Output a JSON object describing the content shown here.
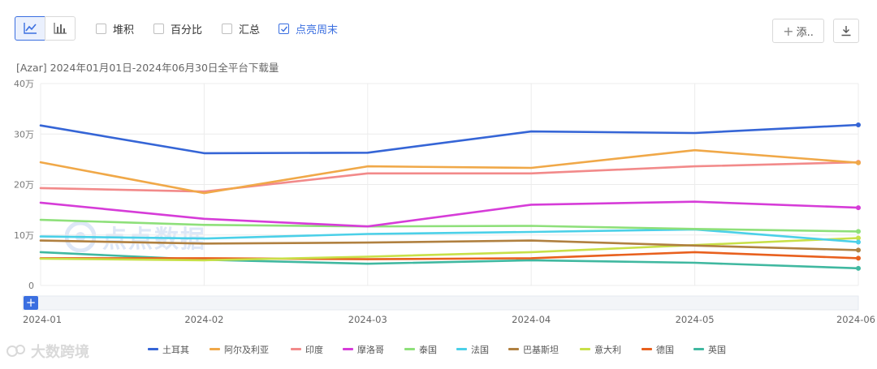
{
  "toolbar": {
    "line_icon": "line-chart-icon",
    "bar_icon": "bar-chart-icon",
    "options": [
      {
        "label": "堆积",
        "checked": false
      },
      {
        "label": "百分比",
        "checked": false
      },
      {
        "label": "汇总",
        "checked": false
      },
      {
        "label": "点亮周末",
        "checked": true
      }
    ],
    "add_label": "添..",
    "download_icon": "download-icon"
  },
  "watermark": {
    "text": "点点数据",
    "footer": "大数跨境"
  },
  "colors": {
    "accent": "#3b6fe0"
  },
  "chart_data": {
    "type": "line",
    "title": "[Azar]  2024年01月01日-2024年06月30日全平台下载量",
    "xlabel": "",
    "ylabel": "",
    "x": [
      "2024-01",
      "2024-02",
      "2024-03",
      "2024-04",
      "2024-05",
      "2024-06"
    ],
    "yticks": [
      "0",
      "10万",
      "20万",
      "30万",
      "40万"
    ],
    "ylim": [
      0,
      400000
    ],
    "grid": true,
    "legend_position": "bottom",
    "series": [
      {
        "name": "土耳其",
        "color": "#3565d6",
        "values": [
          317000,
          262000,
          263000,
          305000,
          302000,
          318000
        ]
      },
      {
        "name": "阿尔及利亚",
        "color": "#f0a848",
        "values": [
          244000,
          183000,
          236000,
          233000,
          268000,
          243000
        ]
      },
      {
        "name": "印度",
        "color": "#f28a8a",
        "values": [
          193000,
          186000,
          222000,
          222000,
          236000,
          244000
        ]
      },
      {
        "name": "摩洛哥",
        "color": "#d63cd8",
        "values": [
          164000,
          132000,
          117000,
          160000,
          166000,
          154000
        ]
      },
      {
        "name": "泰国",
        "color": "#8ee07a",
        "values": [
          130000,
          120000,
          117000,
          118000,
          112000,
          107000
        ]
      },
      {
        "name": "法国",
        "color": "#4bd0e8",
        "values": [
          97000,
          93000,
          102000,
          106000,
          111000,
          86000
        ]
      },
      {
        "name": "巴基斯坦",
        "color": "#b08040",
        "values": [
          89000,
          83000,
          85000,
          89000,
          79000,
          70000
        ]
      },
      {
        "name": "意大利",
        "color": "#c8e048",
        "values": [
          53000,
          50000,
          57000,
          66000,
          80000,
          94000
        ]
      },
      {
        "name": "德国",
        "color": "#e8601e",
        "values": [
          54000,
          54000,
          52000,
          54000,
          66000,
          54000
        ]
      },
      {
        "name": "英国",
        "color": "#40b8a0",
        "values": [
          66000,
          51000,
          43000,
          50000,
          45000,
          34000
        ]
      }
    ]
  }
}
